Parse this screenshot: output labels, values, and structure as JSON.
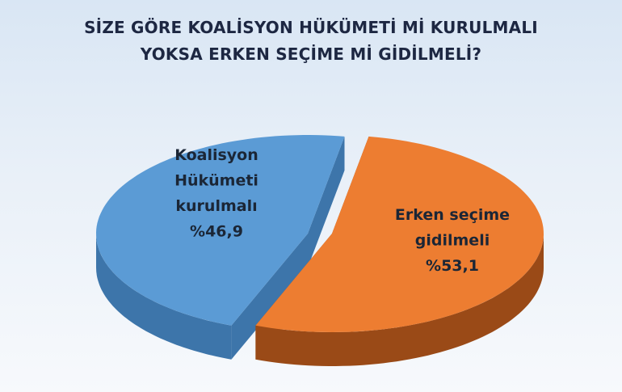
{
  "chart_data": {
    "type": "pie",
    "style": "3d-exploded",
    "title_lines": [
      "SİZE GÖRE KOALİSYON HÜKÜMETİ Mİ KURULMALI",
      "YOKSA ERKEN SEÇİME Mİ GİDİLMELİ?"
    ],
    "slices": [
      {
        "label_lines": [
          "Koalisyon",
          "Hükümeti",
          "kurulmalı",
          "%46,9"
        ],
        "value": 46.9,
        "color": "#5b9bd5",
        "side_color": "#3d75aa"
      },
      {
        "label_lines": [
          "Erken seçime",
          "gidilmeli",
          "%53,1"
        ],
        "value": 53.1,
        "color": "#ed7d31",
        "side_color": "#9a4a17"
      }
    ],
    "legend": "none"
  }
}
